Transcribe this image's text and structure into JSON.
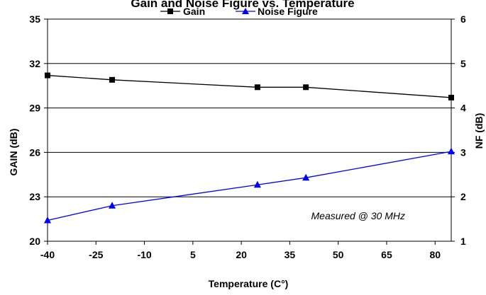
{
  "chart_data": {
    "type": "line",
    "title": "Gain and Noise Figure vs. Temperature",
    "xlabel": "Temperature (C°)",
    "ylabel": "GAIN (dB)",
    "y2label": "NF (dB)",
    "xlim": [
      -40,
      85
    ],
    "ylim": [
      20,
      35
    ],
    "y2lim": [
      1,
      6
    ],
    "xticks": [
      "-40",
      "-25",
      "-10",
      "5",
      "20",
      "35",
      "50",
      "65",
      "80"
    ],
    "xtick_values": [
      -40,
      -25,
      -10,
      5,
      20,
      35,
      50,
      65,
      80
    ],
    "yticks": [
      "20",
      "23",
      "26",
      "29",
      "32",
      "35"
    ],
    "ytick_values": [
      20,
      23,
      26,
      29,
      32,
      35
    ],
    "y2ticks": [
      "1",
      "2",
      "3",
      "4",
      "5",
      "6"
    ],
    "y2tick_values": [
      1,
      2,
      3,
      4,
      5,
      6
    ],
    "grid": true,
    "legend_position": "top",
    "annotation": "Measured @ 30 MHz",
    "series": [
      {
        "name": "Gain",
        "axis": "left",
        "marker": "square",
        "color": "#000000",
        "x": [
          -40,
          -20,
          25,
          40,
          85
        ],
        "values": [
          31.2,
          30.9,
          30.4,
          30.4,
          29.7
        ]
      },
      {
        "name": "Noise Figure",
        "axis": "right",
        "marker": "triangle",
        "color": "#0000ff",
        "x": [
          -40,
          -20,
          25,
          40,
          85
        ],
        "values": [
          1.47,
          1.8,
          2.27,
          2.43,
          3.02
        ]
      }
    ]
  }
}
